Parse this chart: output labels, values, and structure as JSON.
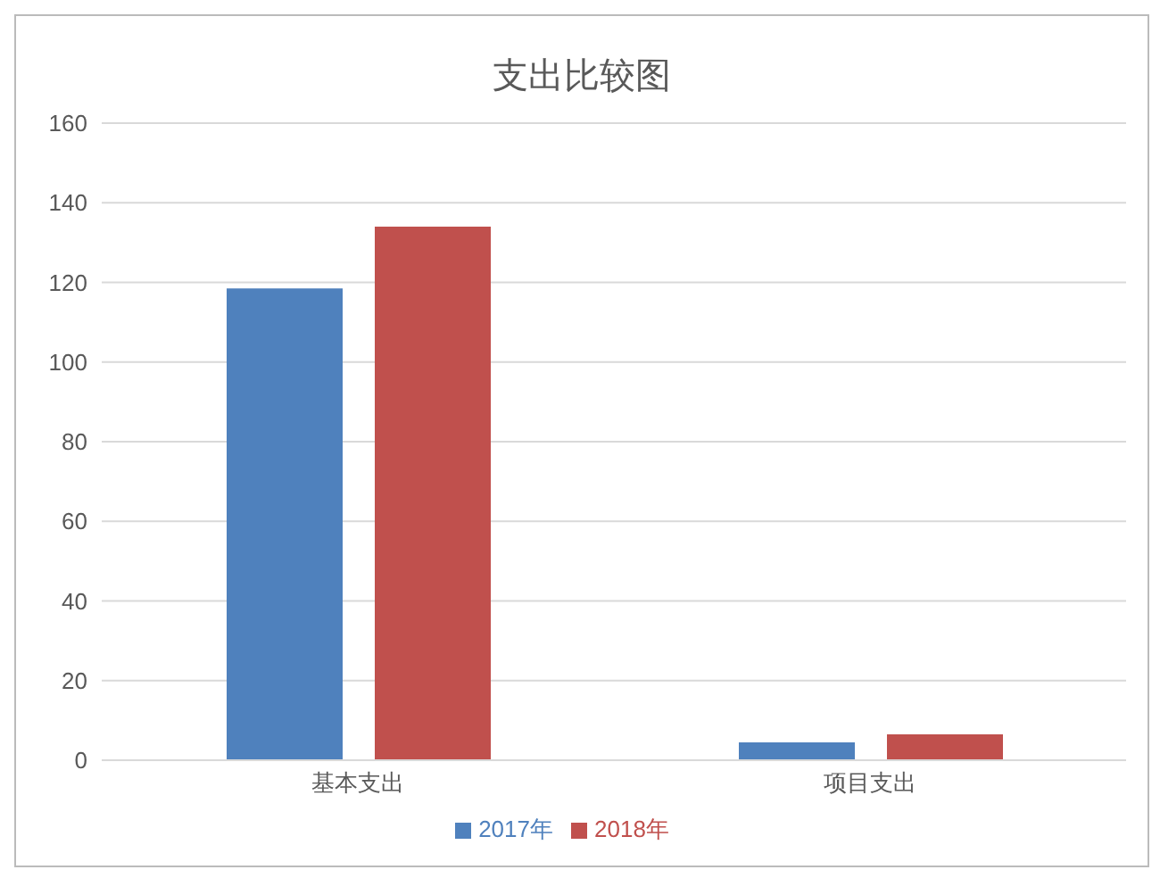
{
  "chart_data": {
    "type": "bar",
    "title": "支出比较图",
    "categories": [
      "基本支出",
      "项目支出"
    ],
    "series": [
      {
        "name": "2017年",
        "color": "#4f81bd",
        "values": [
          118.5,
          4.5
        ]
      },
      {
        "name": "2018年",
        "color": "#c0504d",
        "values": [
          134,
          6.5
        ]
      }
    ],
    "ylim": [
      0,
      160
    ],
    "yticks": [
      0,
      20,
      40,
      60,
      80,
      100,
      120,
      140,
      160
    ],
    "grid": "y",
    "legend": "bottom"
  }
}
